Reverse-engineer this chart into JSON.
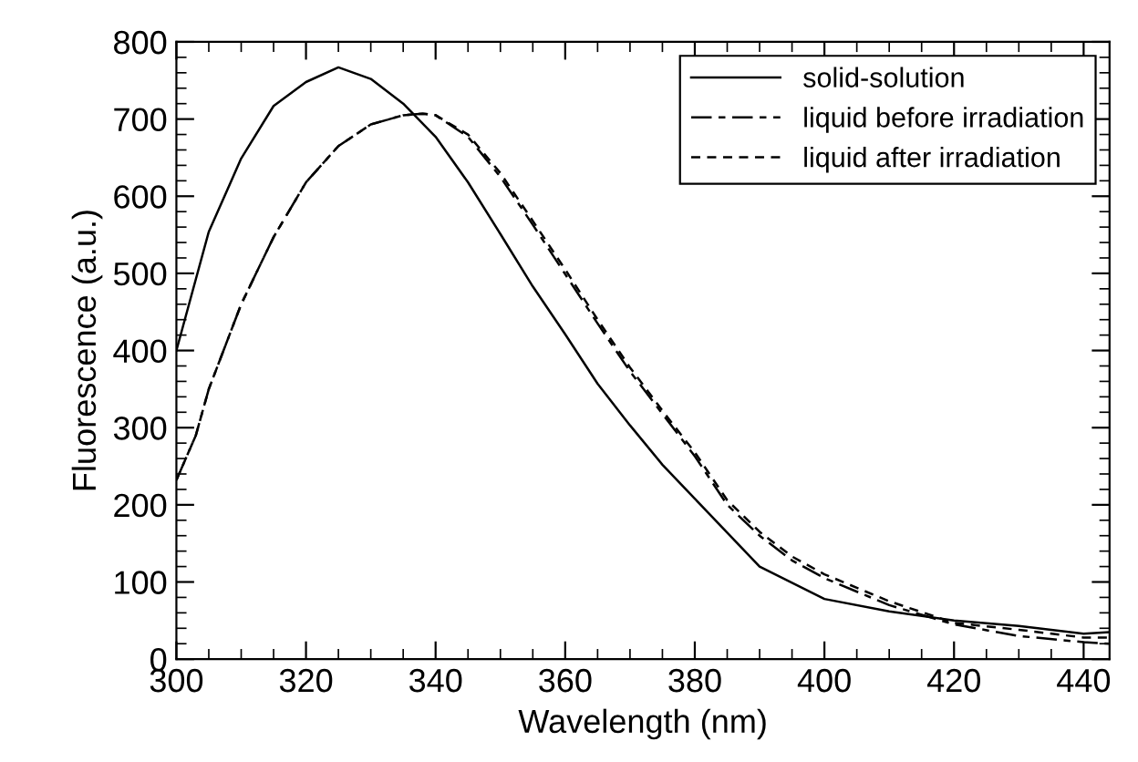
{
  "chart_data": {
    "type": "line",
    "xlabel": "Wavelength (nm)",
    "ylabel": "Fluorescence (a.u.)",
    "xlim": [
      300,
      444
    ],
    "xticks": [
      300,
      320,
      340,
      360,
      380,
      400,
      420,
      440
    ],
    "ylim": [
      0,
      800
    ],
    "yticks": [
      0,
      100,
      200,
      300,
      400,
      500,
      600,
      700,
      800
    ],
    "grid": false,
    "legend": "top right",
    "marker": "none",
    "series": [
      {
        "name": "solid-solution",
        "color": "#000000",
        "line_style": "solid",
        "x": [
          300,
          305,
          310,
          315,
          320,
          325,
          330,
          335,
          340,
          345,
          350,
          355,
          360,
          365,
          370,
          375,
          380,
          390,
          400,
          410,
          420,
          430,
          440,
          444
        ],
        "values": [
          400,
          554,
          649,
          717,
          748,
          767,
          752,
          720,
          677,
          618,
          551,
          483,
          421,
          357,
          303,
          252,
          208,
          120,
          78,
          62,
          50,
          43,
          33,
          35
        ]
      },
      {
        "name": "liquid before irradiation",
        "color": "#000000",
        "line_style": "dashed",
        "x": [
          300,
          303,
          305,
          310,
          315,
          320,
          325,
          330,
          335,
          338,
          340,
          345,
          350,
          355,
          360,
          365,
          370,
          375,
          380,
          385,
          390,
          395,
          400,
          410,
          420,
          430,
          440,
          444
        ],
        "values": [
          232,
          290,
          350,
          460,
          547,
          618,
          665,
          693,
          705,
          707,
          705,
          677,
          625,
          563,
          499,
          435,
          373,
          318,
          263,
          200,
          160,
          128,
          105,
          70,
          45,
          30,
          22,
          20
        ]
      },
      {
        "name": "liquid after irradiation",
        "color": "#000000",
        "line_style": "dotted",
        "x": [
          300,
          303,
          305,
          310,
          315,
          320,
          325,
          330,
          335,
          338,
          340,
          345,
          350,
          355,
          360,
          365,
          370,
          375,
          380,
          385,
          390,
          395,
          400,
          410,
          420,
          430,
          440,
          444
        ],
        "values": [
          232,
          290,
          350,
          460,
          547,
          618,
          665,
          693,
          705,
          707,
          705,
          680,
          630,
          568,
          505,
          440,
          378,
          322,
          268,
          206,
          165,
          133,
          110,
          75,
          47,
          38,
          28,
          28
        ]
      }
    ]
  }
}
